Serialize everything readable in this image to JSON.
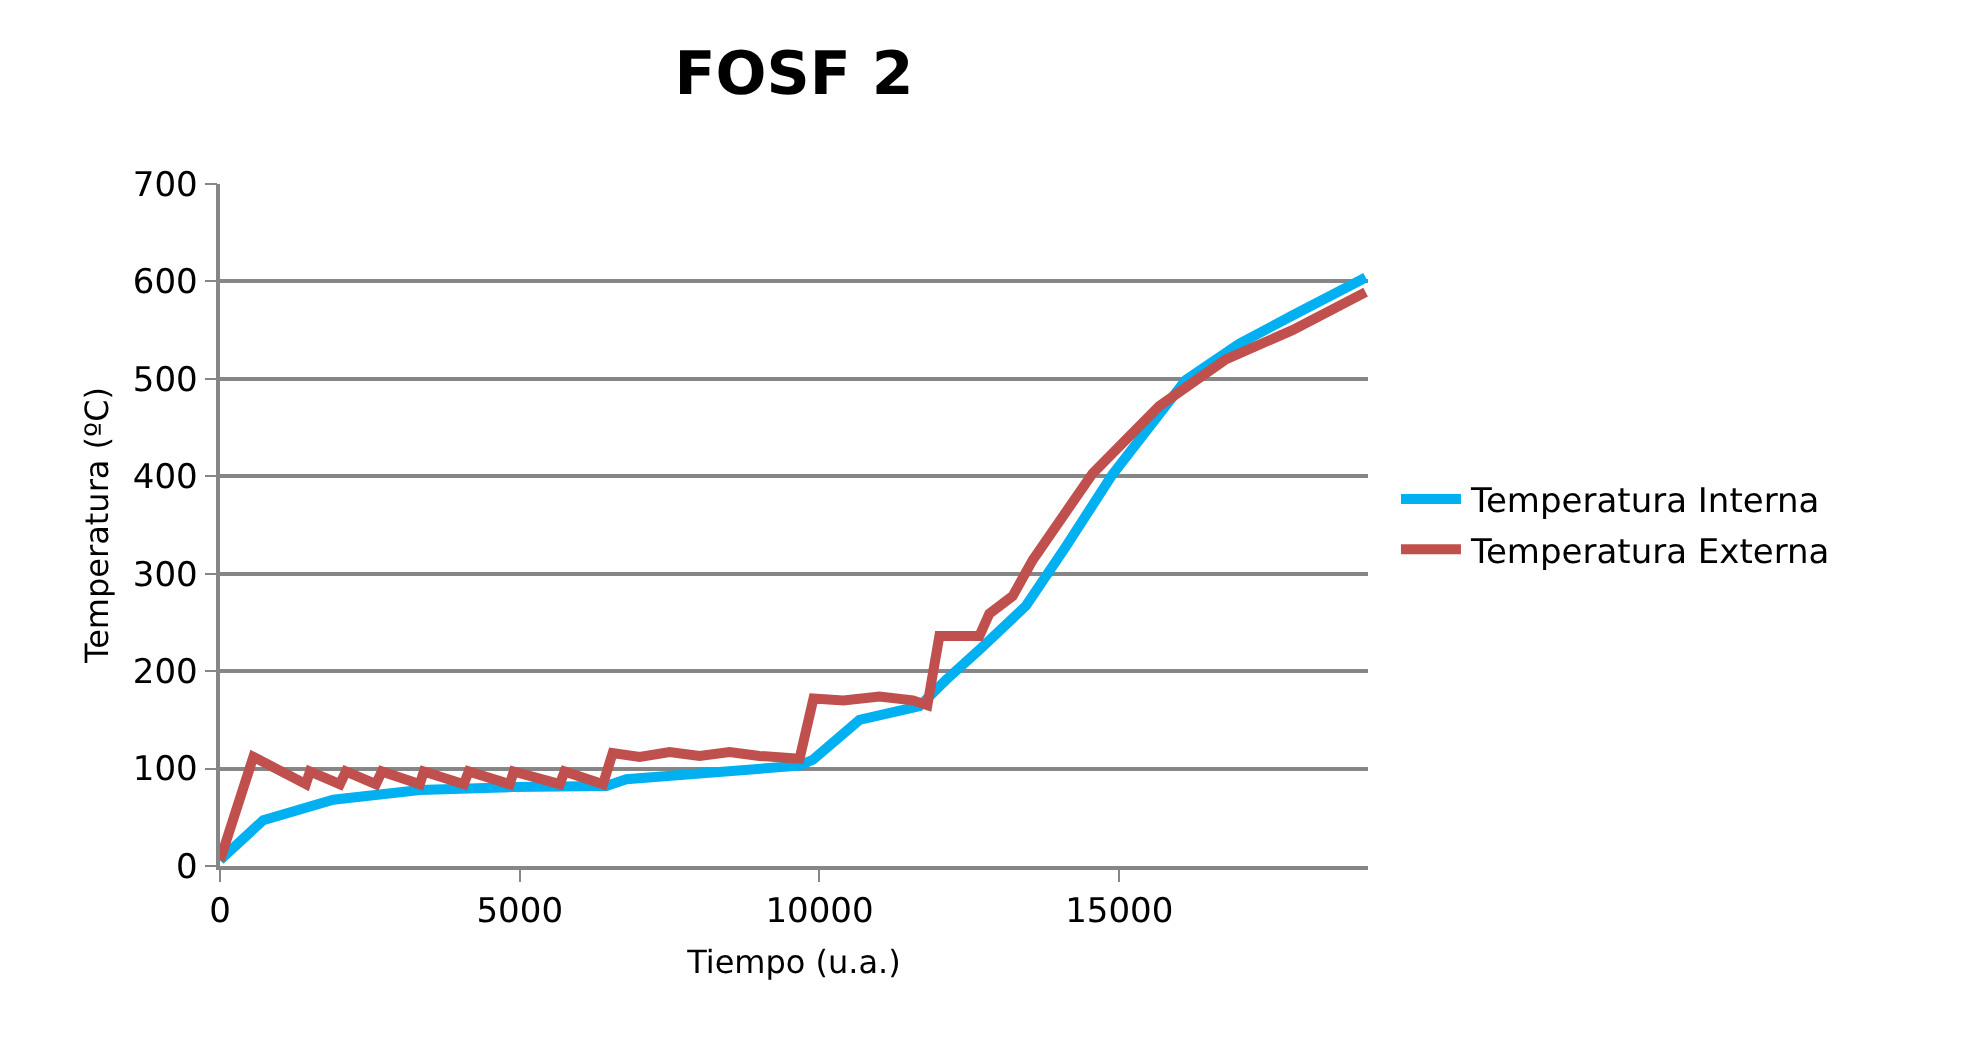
{
  "chart_data": {
    "type": "line",
    "title": "FOSF 2",
    "xlabel": "Tiempo (u.a.)",
    "ylabel": "Temperatura (ºC)",
    "xlim": [
      0,
      19150
    ],
    "xticks": [
      0,
      5000,
      10000,
      15000
    ],
    "ylim": [
      0,
      700
    ],
    "yticks": [
      0,
      100,
      200,
      300,
      400,
      500,
      600,
      700
    ],
    "grid": "y",
    "legend": "right",
    "marker": "none",
    "line_style": "solid",
    "series": [
      {
        "name": "Temperatura Interna",
        "color": "#00b0f0",
        "x": [
          0,
          722,
          1889,
          3333,
          4889,
          6444,
          6778,
          9667,
          9889,
          10667,
          11667,
          12111,
          12667,
          13444,
          14111,
          14889,
          16111,
          17000,
          17889,
          19111
        ],
        "values": [
          6,
          47,
          68,
          78,
          81,
          82,
          89,
          103,
          109,
          150,
          164,
          191,
          222,
          267,
          328,
          402,
          499,
          536,
          565,
          604
        ]
      },
      {
        "name": "Temperatura Externa",
        "color": "#c0504d",
        "x": [
          0,
          556,
          1433,
          1500,
          2000,
          2100,
          2600,
          2700,
          3333,
          3400,
          4067,
          4150,
          4833,
          4900,
          5667,
          5750,
          6389,
          6550,
          7000,
          7500,
          8000,
          8500,
          9000,
          9667,
          9900,
          10400,
          11000,
          11556,
          11800,
          12000,
          12667,
          12833,
          13222,
          13556,
          14556,
          15667,
          16778,
          17889,
          19111
        ],
        "values": [
          6,
          112,
          84,
          97,
          84,
          97,
          84,
          97,
          84,
          97,
          84,
          97,
          84,
          97,
          84,
          97,
          84,
          116,
          112,
          117,
          113,
          117,
          113,
          110,
          172,
          170,
          174,
          170,
          165,
          236,
          236,
          259,
          277,
          314,
          403,
          472,
          520,
          550,
          589
        ]
      }
    ]
  }
}
